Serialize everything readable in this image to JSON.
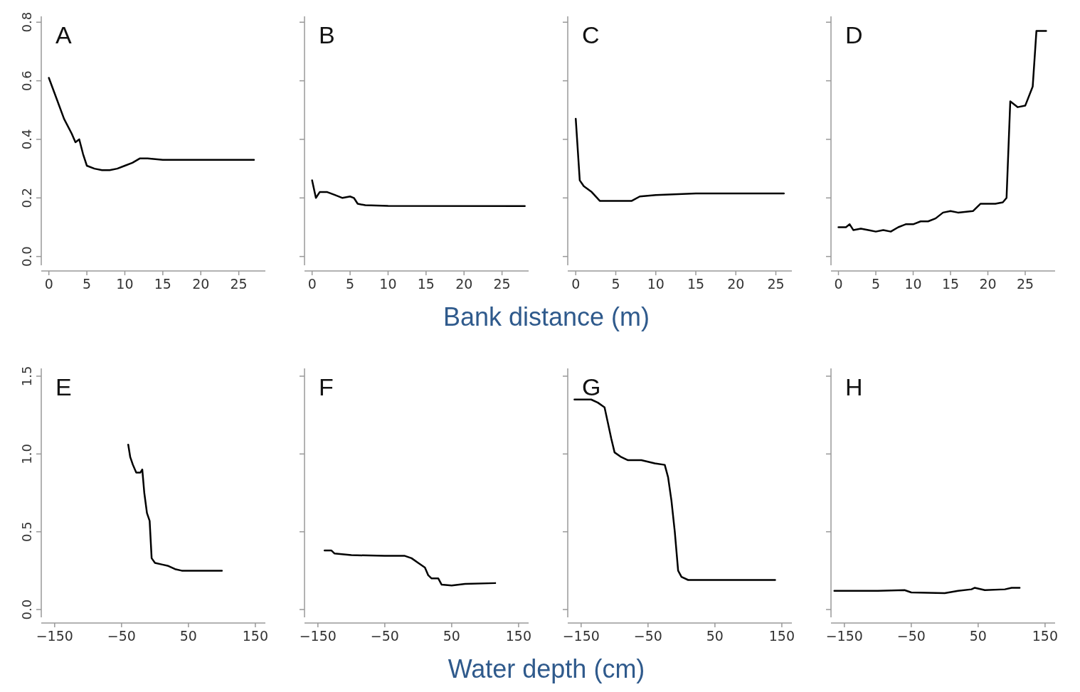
{
  "chart_data": [
    {
      "type": "line",
      "title": "A",
      "x": [
        0,
        1,
        2,
        3,
        3.5,
        4,
        4.5,
        5,
        6,
        7,
        8,
        9,
        10,
        11,
        12,
        13,
        15,
        20,
        27
      ],
      "values": [
        0.61,
        0.54,
        0.47,
        0.42,
        0.39,
        0.4,
        0.35,
        0.31,
        0.3,
        0.295,
        0.295,
        0.3,
        0.31,
        0.32,
        0.335,
        0.335,
        0.33,
        0.33,
        0.33
      ],
      "color": "#000000",
      "xlim": [
        -1,
        28.5
      ],
      "xticks": [
        0,
        5,
        10,
        15,
        20,
        25
      ],
      "ylim": [
        -0.03,
        0.82
      ],
      "yticks": [
        {
          "value": 0,
          "label": "0.0"
        },
        {
          "value": 0.2,
          "label": "0.2"
        },
        {
          "value": 0.4,
          "label": "0.4"
        },
        {
          "value": 0.6,
          "label": "0.6"
        },
        {
          "value": 0.8,
          "label": "0.8"
        }
      ]
    },
    {
      "type": "line",
      "title": "B",
      "x": [
        0,
        0.5,
        1,
        2,
        3,
        4,
        5,
        5.5,
        6,
        7,
        10,
        28
      ],
      "values": [
        0.26,
        0.2,
        0.22,
        0.22,
        0.21,
        0.2,
        0.205,
        0.2,
        0.18,
        0.175,
        0.173,
        0.172
      ],
      "color": "#000000",
      "xlim": [
        -1,
        28.5
      ],
      "xticks": [
        0,
        5,
        10,
        15,
        20,
        25
      ],
      "ylim": [
        -0.03,
        0.82
      ],
      "yticks": [
        0,
        0.2,
        0.4,
        0.6,
        0.8
      ],
      "tick_labels": "x"
    },
    {
      "type": "line",
      "title": "C",
      "xlabel": "Bank distance (m)",
      "x": [
        0,
        0.5,
        1,
        2,
        3,
        5,
        7,
        8,
        10,
        15,
        26
      ],
      "values": [
        0.47,
        0.26,
        0.24,
        0.22,
        0.19,
        0.19,
        0.19,
        0.205,
        0.21,
        0.215,
        0.215
      ],
      "color": "#000000",
      "xlim": [
        -1,
        27
      ],
      "xticks": [
        0,
        5,
        10,
        15,
        20,
        25
      ],
      "ylim": [
        -0.03,
        0.82
      ],
      "yticks": [
        0,
        0.2,
        0.4,
        0.6,
        0.8
      ],
      "tick_labels": "x"
    },
    {
      "type": "line",
      "title": "D",
      "x": [
        0,
        1,
        1.5,
        2,
        3,
        4,
        5,
        6,
        7,
        8,
        9,
        10,
        11,
        12,
        13,
        14,
        15,
        16,
        18,
        19,
        21,
        22,
        22.5,
        23,
        24,
        25,
        26,
        26.5,
        27.8
      ],
      "values": [
        0.1,
        0.1,
        0.11,
        0.09,
        0.095,
        0.09,
        0.085,
        0.09,
        0.085,
        0.1,
        0.11,
        0.11,
        0.12,
        0.12,
        0.13,
        0.15,
        0.155,
        0.15,
        0.155,
        0.18,
        0.18,
        0.185,
        0.2,
        0.53,
        0.51,
        0.515,
        0.58,
        0.77,
        0.77
      ],
      "color": "#000000",
      "xlim": [
        -1,
        29
      ],
      "xticks": [
        0,
        5,
        10,
        15,
        20,
        25
      ],
      "ylim": [
        -0.03,
        0.82
      ],
      "yticks": [
        0,
        0.2,
        0.4,
        0.6,
        0.8
      ],
      "tick_labels": "x"
    },
    {
      "type": "line",
      "title": "E",
      "x": [
        -40,
        -37,
        -33,
        -28,
        -22,
        -19,
        -16,
        -12,
        -8,
        -5,
        0,
        10,
        20,
        30,
        40,
        60,
        100
      ],
      "values": [
        1.06,
        0.98,
        0.93,
        0.88,
        0.88,
        0.9,
        0.75,
        0.62,
        0.57,
        0.33,
        0.3,
        0.29,
        0.28,
        0.26,
        0.25,
        0.25,
        0.25
      ],
      "color": "#000000",
      "xlim": [
        -170,
        165
      ],
      "xticks": [
        -150,
        -50,
        50,
        150
      ],
      "ylim": [
        -0.05,
        1.55
      ],
      "yticks": [
        {
          "value": 0,
          "label": "0.0"
        },
        {
          "value": 0.5,
          "label": "0.5"
        },
        {
          "value": 1,
          "label": "1.0"
        },
        {
          "value": 1.5,
          "label": "1.5"
        }
      ]
    },
    {
      "type": "line",
      "title": "F",
      "x": [
        -140,
        -130,
        -125,
        -100,
        -50,
        -20,
        -10,
        0,
        10,
        15,
        20,
        30,
        35,
        50,
        70,
        115
      ],
      "values": [
        0.38,
        0.38,
        0.36,
        0.35,
        0.345,
        0.345,
        0.33,
        0.3,
        0.27,
        0.22,
        0.2,
        0.2,
        0.16,
        0.155,
        0.165,
        0.17
      ],
      "color": "#000000",
      "xlim": [
        -170,
        165
      ],
      "xticks": [
        -150,
        -50,
        50,
        150
      ],
      "ylim": [
        -0.05,
        1.55
      ],
      "yticks": [
        0,
        0.5,
        1,
        1.5
      ],
      "tick_labels": "x"
    },
    {
      "type": "line",
      "title": "G",
      "xlabel": "Water depth (cm)",
      "x": [
        -160,
        -135,
        -125,
        -115,
        -110,
        -105,
        -100,
        -90,
        -80,
        -60,
        -40,
        -25,
        -20,
        -15,
        -10,
        -5,
        0,
        10,
        140
      ],
      "values": [
        1.35,
        1.35,
        1.33,
        1.3,
        1.2,
        1.1,
        1.01,
        0.98,
        0.96,
        0.96,
        0.94,
        0.93,
        0.85,
        0.7,
        0.5,
        0.25,
        0.21,
        0.19,
        0.19
      ],
      "color": "#000000",
      "xlim": [
        -170,
        165
      ],
      "xticks": [
        -150,
        -50,
        50,
        150
      ],
      "ylim": [
        -0.05,
        1.55
      ],
      "yticks": [
        0,
        0.5,
        1,
        1.5
      ],
      "tick_labels": "x"
    },
    {
      "type": "line",
      "title": "H",
      "x": [
        -165,
        -100,
        -60,
        -50,
        0,
        20,
        40,
        45,
        60,
        90,
        100,
        112
      ],
      "values": [
        0.12,
        0.12,
        0.125,
        0.11,
        0.105,
        0.12,
        0.13,
        0.14,
        0.125,
        0.13,
        0.14,
        0.14
      ],
      "color": "#000000",
      "xlim": [
        -170,
        165
      ],
      "xticks": [
        -150,
        -50,
        50,
        150
      ],
      "ylim": [
        -0.05,
        1.55
      ],
      "yticks": [
        0,
        0.5,
        1,
        1.5
      ],
      "tick_labels": "x"
    }
  ]
}
